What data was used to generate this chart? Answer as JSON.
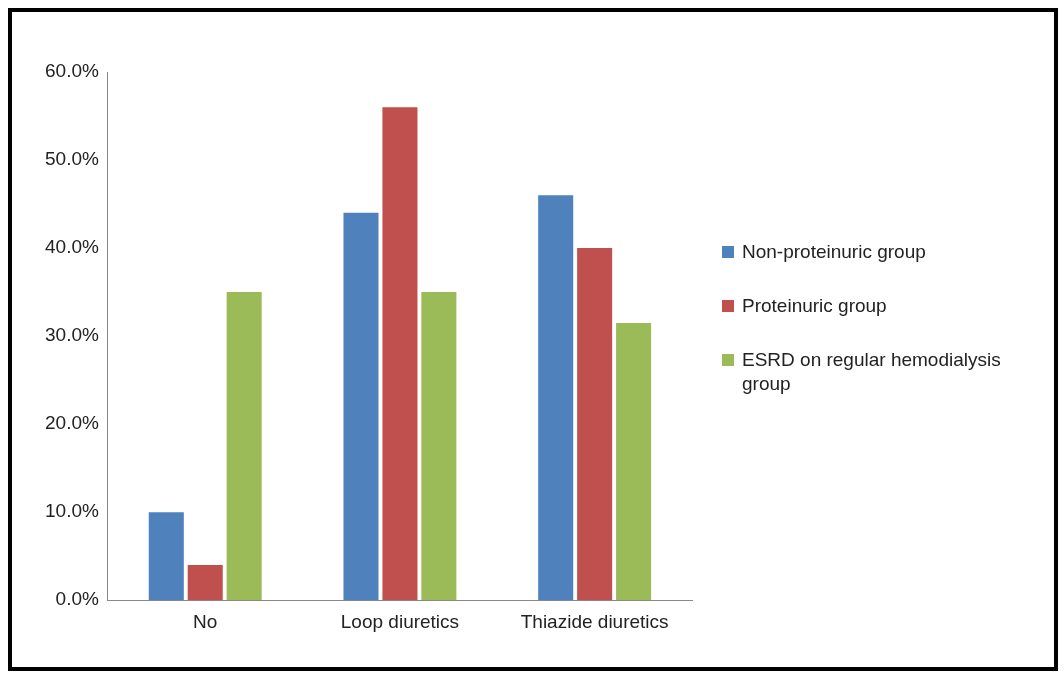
{
  "chart_data": {
    "type": "bar",
    "categories": [
      "No",
      "Loop diuretics",
      "Thiazide diuretics"
    ],
    "series": [
      {
        "name": "Non-proteinuric group",
        "color": "#4f81bd",
        "values": [
          10,
          44,
          46
        ]
      },
      {
        "name": "Proteinuric group",
        "color": "#c0504d",
        "values": [
          4,
          56,
          40
        ]
      },
      {
        "name": "ESRD on regular hemodialysis group",
        "color": "#9bbb59",
        "values": [
          35,
          35,
          31.5
        ]
      }
    ],
    "ylim": [
      0,
      60
    ],
    "yticks": [
      {
        "value": 0,
        "label": "0.0%"
      },
      {
        "value": 10,
        "label": "10.0%"
      },
      {
        "value": 20,
        "label": "20.0%"
      },
      {
        "value": 30,
        "label": "30.0%"
      },
      {
        "value": 40,
        "label": "40.0%"
      },
      {
        "value": 50,
        "label": "50.0%"
      },
      {
        "value": 60,
        "label": "60.0%"
      }
    ],
    "grid": false,
    "legend": "right"
  }
}
